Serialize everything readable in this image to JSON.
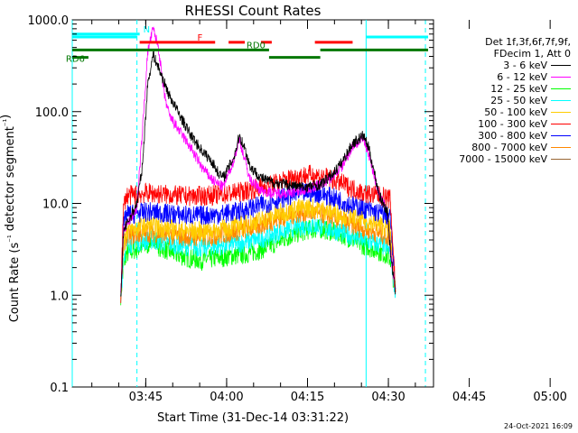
{
  "chart_data": {
    "type": "line",
    "title": "RHESSI Count Rates",
    "xlabel": "Start Time (31-Dec-14 03:31:22)",
    "ylabel": "Count Rate (s⁻¹ detector segment⁻¹)",
    "y_scale": "log",
    "ylim": [
      0.1,
      1000
    ],
    "xlim_minutes": [
      0,
      67
    ],
    "x_ticks": [
      "03:45",
      "04:00",
      "04:15",
      "04:30",
      "04:45",
      "05:00"
    ],
    "y_ticks": [
      "0.1",
      "1.0",
      "10.0",
      "100.0",
      "1000.0"
    ],
    "legend_header": [
      "Det 1f,3f,6f,7f,9f,",
      "FDecim 1, Att 0"
    ],
    "series": [
      {
        "name": "3 - 6 keV",
        "color": "#000000",
        "points": [
          [
            9,
            1.0
          ],
          [
            9.5,
            5
          ],
          [
            12,
            10
          ],
          [
            13,
            25
          ],
          [
            14,
            200
          ],
          [
            15,
            420
          ],
          [
            16,
            300
          ],
          [
            18,
            150
          ],
          [
            20,
            90
          ],
          [
            22,
            55
          ],
          [
            24,
            38
          ],
          [
            26,
            28
          ],
          [
            27,
            22
          ],
          [
            28,
            19
          ],
          [
            30,
            32
          ],
          [
            31,
            55
          ],
          [
            32,
            40
          ],
          [
            33,
            25
          ],
          [
            35,
            19
          ],
          [
            37,
            17
          ],
          [
            40,
            16
          ],
          [
            43,
            15
          ],
          [
            46,
            16
          ],
          [
            48,
            20
          ],
          [
            50,
            28
          ],
          [
            52,
            45
          ],
          [
            54,
            55
          ],
          [
            55,
            40
          ],
          [
            56,
            22
          ],
          [
            57,
            12
          ],
          [
            58.5,
            8
          ],
          [
            59,
            3
          ],
          [
            60,
            1
          ]
        ]
      },
      {
        "name": "6 - 12 keV",
        "color": "#ff00ff",
        "points": [
          [
            9,
            1.0
          ],
          [
            9.5,
            5
          ],
          [
            12,
            9
          ],
          [
            13,
            60
          ],
          [
            14,
            450
          ],
          [
            15,
            800
          ],
          [
            16,
            500
          ],
          [
            17,
            160
          ],
          [
            18,
            90
          ],
          [
            20,
            60
          ],
          [
            22,
            40
          ],
          [
            24,
            25
          ],
          [
            26,
            18
          ],
          [
            28,
            15
          ],
          [
            30,
            30
          ],
          [
            31,
            50
          ],
          [
            32,
            30
          ],
          [
            33,
            18
          ],
          [
            35,
            14
          ],
          [
            37,
            13
          ],
          [
            40,
            13
          ],
          [
            43,
            14
          ],
          [
            46,
            16
          ],
          [
            48,
            19
          ],
          [
            50,
            25
          ],
          [
            52,
            42
          ],
          [
            54,
            50
          ],
          [
            55,
            35
          ],
          [
            56,
            20
          ],
          [
            57,
            12
          ],
          [
            58.5,
            8
          ],
          [
            59,
            3
          ],
          [
            60,
            1
          ]
        ]
      },
      {
        "name": "12 - 25 keV",
        "color": "#00ff00",
        "points": [
          [
            9,
            1.0
          ],
          [
            9.5,
            2.0
          ],
          [
            10,
            2.8
          ],
          [
            12,
            3.2
          ],
          [
            14,
            3.5
          ],
          [
            15,
            4.5
          ],
          [
            16,
            3.4
          ],
          [
            18,
            3.0
          ],
          [
            20,
            2.7
          ],
          [
            22,
            2.5
          ],
          [
            24,
            2.4
          ],
          [
            26,
            2.5
          ],
          [
            28,
            2.6
          ],
          [
            30,
            2.7
          ],
          [
            32,
            2.8
          ],
          [
            34,
            3.0
          ],
          [
            36,
            3.3
          ],
          [
            38,
            3.8
          ],
          [
            40,
            4.3
          ],
          [
            42,
            4.8
          ],
          [
            44,
            5.2
          ],
          [
            46,
            5.3
          ],
          [
            48,
            5.0
          ],
          [
            50,
            4.6
          ],
          [
            52,
            4.0
          ],
          [
            54,
            3.5
          ],
          [
            56,
            3.2
          ],
          [
            58,
            2.8
          ],
          [
            59,
            2.5
          ],
          [
            60,
            1.0
          ]
        ]
      },
      {
        "name": "25 - 50 keV",
        "color": "#00ffff",
        "points": [
          [
            9,
            1.0
          ],
          [
            9.5,
            2.5
          ],
          [
            10,
            3.6
          ],
          [
            12,
            3.8
          ],
          [
            14,
            4.0
          ],
          [
            16,
            3.9
          ],
          [
            18,
            3.7
          ],
          [
            20,
            3.5
          ],
          [
            22,
            3.4
          ],
          [
            24,
            3.3
          ],
          [
            26,
            3.4
          ],
          [
            28,
            3.5
          ],
          [
            30,
            3.6
          ],
          [
            32,
            3.8
          ],
          [
            34,
            4.0
          ],
          [
            36,
            4.3
          ],
          [
            38,
            4.8
          ],
          [
            40,
            5.2
          ],
          [
            42,
            5.6
          ],
          [
            44,
            5.8
          ],
          [
            46,
            5.6
          ],
          [
            48,
            5.2
          ],
          [
            50,
            4.8
          ],
          [
            52,
            4.4
          ],
          [
            54,
            4.0
          ],
          [
            56,
            3.7
          ],
          [
            58,
            3.4
          ],
          [
            59,
            3.0
          ],
          [
            60,
            1.0
          ]
        ]
      },
      {
        "name": "50 - 100 keV",
        "color": "#ffcc00",
        "points": [
          [
            9,
            1.0
          ],
          [
            9.5,
            3.5
          ],
          [
            10,
            5.0
          ],
          [
            12,
            5.4
          ],
          [
            14,
            5.8
          ],
          [
            16,
            5.5
          ],
          [
            18,
            5.3
          ],
          [
            20,
            5.1
          ],
          [
            22,
            5.0
          ],
          [
            24,
            5.0
          ],
          [
            26,
            5.1
          ],
          [
            28,
            5.3
          ],
          [
            30,
            5.6
          ],
          [
            32,
            5.9
          ],
          [
            34,
            6.3
          ],
          [
            36,
            6.9
          ],
          [
            38,
            7.6
          ],
          [
            40,
            8.3
          ],
          [
            42,
            8.8
          ],
          [
            44,
            9.0
          ],
          [
            46,
            8.7
          ],
          [
            48,
            8.2
          ],
          [
            50,
            7.6
          ],
          [
            52,
            7.0
          ],
          [
            54,
            6.5
          ],
          [
            56,
            6.1
          ],
          [
            58,
            5.6
          ],
          [
            59,
            5.2
          ],
          [
            60,
            1.0
          ]
        ]
      },
      {
        "name": "100 - 300 keV",
        "color": "#ff0000",
        "points": [
          [
            9,
            1.0
          ],
          [
            9.5,
            9
          ],
          [
            10,
            12
          ],
          [
            12,
            12.5
          ],
          [
            14,
            13
          ],
          [
            16,
            12.7
          ],
          [
            18,
            12.4
          ],
          [
            20,
            12.1
          ],
          [
            22,
            12.0
          ],
          [
            24,
            12.1
          ],
          [
            26,
            12.3
          ],
          [
            28,
            12.6
          ],
          [
            30,
            13.0
          ],
          [
            32,
            13.6
          ],
          [
            34,
            14.5
          ],
          [
            36,
            15.5
          ],
          [
            38,
            16.8
          ],
          [
            40,
            18.5
          ],
          [
            42,
            19.8
          ],
          [
            44,
            20.5
          ],
          [
            46,
            20.0
          ],
          [
            48,
            18.5
          ],
          [
            50,
            16.5
          ],
          [
            52,
            14.5
          ],
          [
            54,
            13.0
          ],
          [
            56,
            12.3
          ],
          [
            58,
            11.8
          ],
          [
            59,
            11.0
          ],
          [
            60,
            1.0
          ]
        ]
      },
      {
        "name": "300 - 800 keV",
        "color": "#0000ff",
        "points": [
          [
            9,
            1.0
          ],
          [
            9.5,
            5.5
          ],
          [
            10,
            7.5
          ],
          [
            12,
            7.8
          ],
          [
            14,
            8.1
          ],
          [
            16,
            7.9
          ],
          [
            18,
            7.7
          ],
          [
            20,
            7.5
          ],
          [
            22,
            7.4
          ],
          [
            24,
            7.4
          ],
          [
            26,
            7.5
          ],
          [
            28,
            7.7
          ],
          [
            30,
            8.0
          ],
          [
            32,
            8.5
          ],
          [
            34,
            9.2
          ],
          [
            36,
            10.0
          ],
          [
            38,
            11.0
          ],
          [
            40,
            12.0
          ],
          [
            42,
            12.8
          ],
          [
            44,
            13.2
          ],
          [
            46,
            12.8
          ],
          [
            48,
            11.8
          ],
          [
            50,
            10.6
          ],
          [
            52,
            9.6
          ],
          [
            54,
            8.8
          ],
          [
            56,
            8.1
          ],
          [
            58,
            7.6
          ],
          [
            59,
            7.0
          ],
          [
            60,
            1.0
          ]
        ]
      },
      {
        "name": "800 - 7000 keV",
        "color": "#ff8800",
        "points": [
          [
            9,
            1.0
          ],
          [
            9.5,
            3.2
          ],
          [
            10,
            4.4
          ],
          [
            12,
            4.6
          ],
          [
            14,
            4.8
          ],
          [
            16,
            4.7
          ],
          [
            18,
            4.5
          ],
          [
            20,
            4.4
          ],
          [
            22,
            4.3
          ],
          [
            24,
            4.3
          ],
          [
            26,
            4.4
          ],
          [
            28,
            4.6
          ],
          [
            30,
            4.9
          ],
          [
            32,
            5.2
          ],
          [
            34,
            5.6
          ],
          [
            36,
            6.1
          ],
          [
            38,
            6.7
          ],
          [
            40,
            7.3
          ],
          [
            42,
            7.8
          ],
          [
            44,
            8.0
          ],
          [
            46,
            7.7
          ],
          [
            48,
            7.1
          ],
          [
            50,
            6.4
          ],
          [
            52,
            5.8
          ],
          [
            54,
            5.3
          ],
          [
            56,
            4.9
          ],
          [
            58,
            4.5
          ],
          [
            59,
            4.1
          ],
          [
            60,
            1.0
          ]
        ]
      },
      {
        "name": "7000 - 15000 keV",
        "color": "#996633",
        "points": []
      }
    ],
    "flags": [
      {
        "label": "N",
        "color": "#00ffff",
        "segments": [
          [
            0,
            12.5
          ]
        ],
        "level": 700
      },
      {
        "label": "F",
        "color": "#ff0000",
        "segments": [
          [
            12.5,
            26.5
          ],
          [
            29,
            32
          ],
          [
            35,
            37
          ],
          [
            45,
            52
          ]
        ],
        "level": 570
      },
      {
        "label": "RD0",
        "color": "#007700",
        "segments": [
          [
            0,
            36.5
          ],
          [
            46,
            66
          ]
        ],
        "level": 470
      },
      {
        "label": "RD6",
        "color": "#007700",
        "segments": [
          [
            0,
            3
          ],
          [
            36.5,
            46
          ]
        ],
        "level": 390
      }
    ],
    "vlines": [
      {
        "x": 0,
        "color": "#00ffff",
        "style": "solid"
      },
      {
        "x": 12,
        "color": "#00ffff",
        "style": "dashed"
      },
      {
        "x": 54.5,
        "color": "#00ffff",
        "style": "solid"
      },
      {
        "x": 65.5,
        "color": "#00ffff",
        "style": "dashed"
      }
    ],
    "cyan_top_segments": [
      [
        0,
        12
      ],
      [
        54.5,
        66
      ]
    ],
    "grid": false
  },
  "footer_stamp": "24-Oct-2021 16:09"
}
